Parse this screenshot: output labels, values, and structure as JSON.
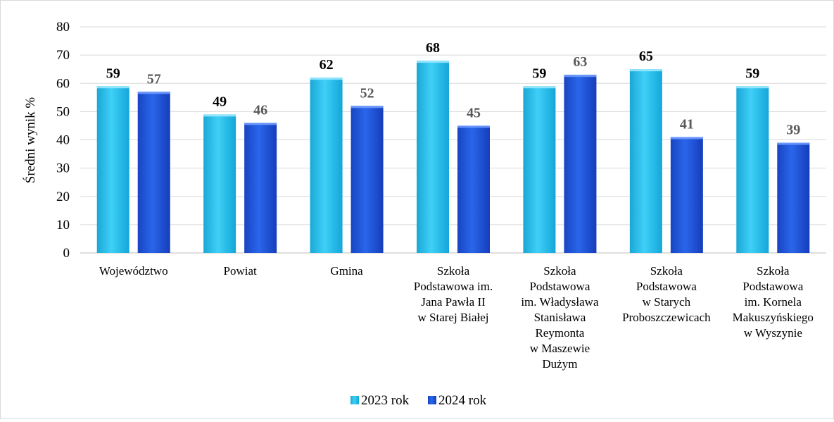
{
  "chart_data": {
    "type": "bar",
    "ylabel": "Średni wynik %",
    "ylim": [
      0,
      80
    ],
    "yticks": [
      0,
      10,
      20,
      30,
      40,
      50,
      60,
      70,
      80
    ],
    "grid": true,
    "legend_position": "bottom",
    "categories": [
      [
        "Województwo"
      ],
      [
        "Powiat"
      ],
      [
        "Gmina"
      ],
      [
        "Szkoła",
        "Podstawowa im.",
        "Jana Pawła II",
        "w Starej Białej"
      ],
      [
        "Szkoła",
        "Podstawowa",
        "im. Władysława",
        "Stanisława",
        "Reymonta",
        "w Maszewie",
        "Dużym"
      ],
      [
        "Szkoła",
        "Podstawowa",
        "w Starych",
        "Proboszczewicach"
      ],
      [
        "Szkoła",
        "Podstawowa",
        "im. Kornela",
        "Makuszyńskiego",
        "w Wyszynie"
      ]
    ],
    "series": [
      {
        "name": "2023 rok",
        "color": "#1fc0ee",
        "label_color": "#000000",
        "values": [
          59,
          49,
          62,
          68,
          59,
          65,
          59
        ]
      },
      {
        "name": "2024 rok",
        "color": "#1f55dd",
        "label_color": "#595959",
        "values": [
          57,
          46,
          52,
          45,
          63,
          41,
          39
        ]
      }
    ]
  }
}
